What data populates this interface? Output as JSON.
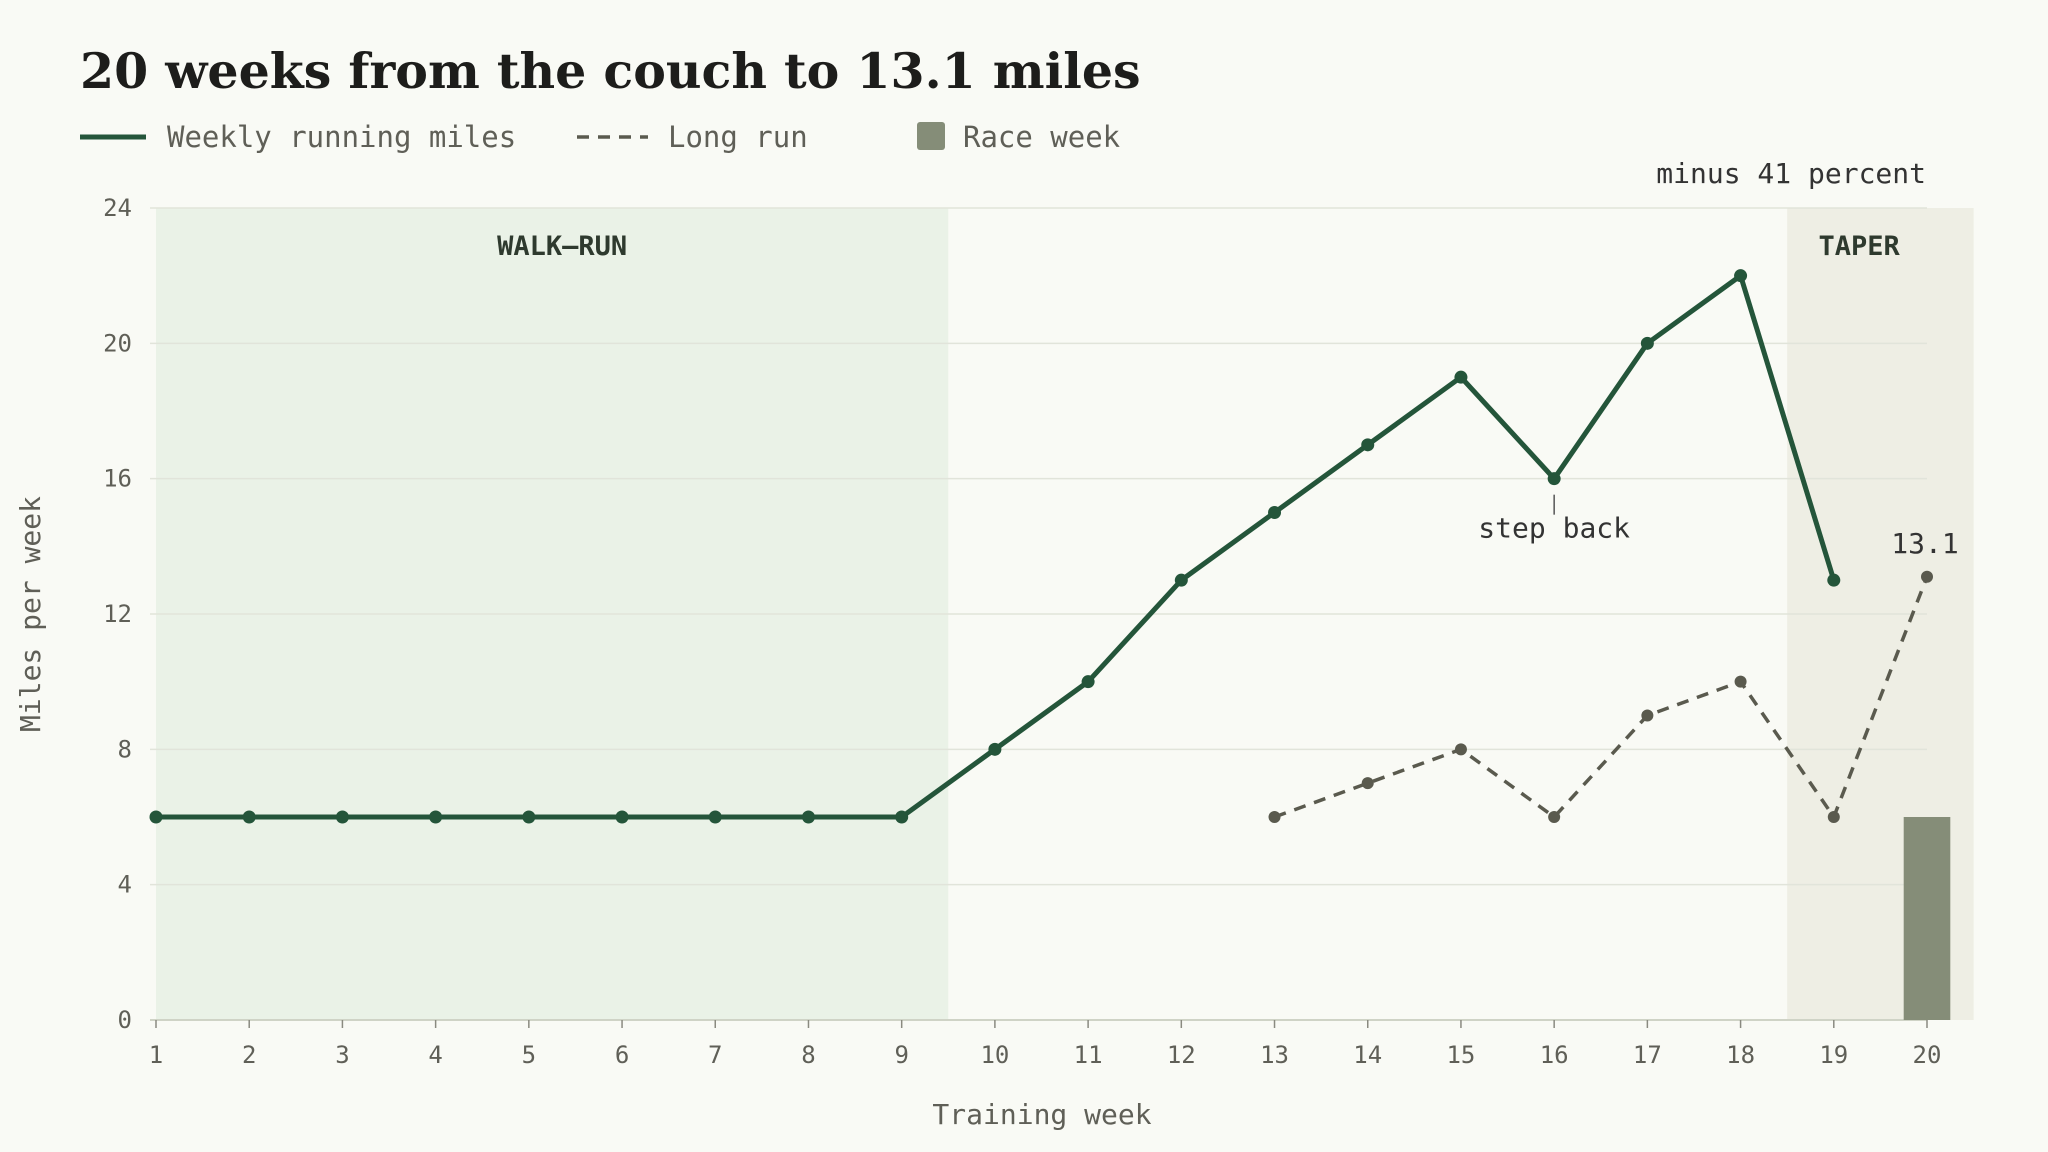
{
  "chart_data": {
    "type": "line",
    "title": "20 weeks from the couch to 13.1 miles",
    "xlabel": "Training week",
    "ylabel": "Miles per week",
    "x": [
      1,
      2,
      3,
      4,
      5,
      6,
      7,
      8,
      9,
      10,
      11,
      12,
      13,
      14,
      15,
      16,
      17,
      18,
      19,
      20
    ],
    "xlim": [
      1,
      20
    ],
    "ylim": [
      0,
      24
    ],
    "yticks": [
      0,
      4,
      8,
      12,
      16,
      20,
      24
    ],
    "grid": true,
    "legend": {
      "placement": "top-left"
    },
    "series": [
      {
        "name": "Weekly running miles",
        "type": "line",
        "style": "solid",
        "color": "#24553a",
        "x": [
          1,
          2,
          3,
          4,
          5,
          6,
          7,
          8,
          9,
          10,
          11,
          12,
          13,
          14,
          15,
          16,
          17,
          18,
          19
        ],
        "values": [
          6,
          6,
          6,
          6,
          6,
          6,
          6,
          6,
          6,
          8,
          10,
          13,
          15,
          17,
          19,
          16,
          20,
          22,
          13
        ]
      },
      {
        "name": "Long run",
        "type": "line",
        "style": "dashed",
        "color": "#5a5a4e",
        "x": [
          13,
          14,
          15,
          16,
          17,
          18,
          19,
          20
        ],
        "values": [
          6,
          7,
          8,
          6,
          9,
          10,
          6,
          13.1
        ]
      },
      {
        "name": "Race week",
        "type": "bar",
        "color": "#858d78",
        "x": [
          20
        ],
        "values": [
          6
        ]
      }
    ],
    "bands": [
      {
        "label": "WALK–RUN",
        "from": 1,
        "to": 9.5,
        "color": "#eaf2e7"
      },
      {
        "label": "TAPER",
        "from": 18.5,
        "to": 20.5,
        "color": "#eeeee4"
      }
    ],
    "annotations": [
      {
        "text": "step back",
        "x": 16,
        "y": 16
      },
      {
        "text": "13.1",
        "x": 20,
        "y": 13.1
      },
      {
        "text": "minus 41 percent"
      }
    ]
  }
}
